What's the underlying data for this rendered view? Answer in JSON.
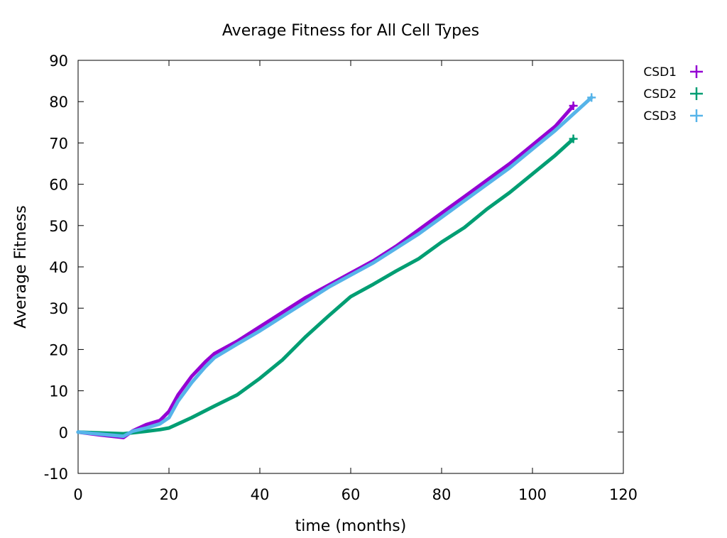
{
  "chart_data": {
    "type": "line",
    "title": "Average Fitness for All Cell Types",
    "xlabel": "time (months)",
    "ylabel": "Average Fitness",
    "xlim": [
      0,
      120
    ],
    "ylim": [
      -10,
      90
    ],
    "xticks": [
      0,
      20,
      40,
      60,
      80,
      100,
      120
    ],
    "yticks": [
      -10,
      0,
      10,
      20,
      30,
      40,
      50,
      60,
      70,
      80,
      90
    ],
    "grid": false,
    "legend_position": "outside-top-right",
    "marker": "+",
    "series": [
      {
        "name": "CSD1",
        "color": "#9400d3",
        "x": [
          0,
          5,
          10,
          12,
          15,
          18,
          20,
          22,
          25,
          28,
          30,
          35,
          40,
          45,
          50,
          55,
          60,
          65,
          70,
          75,
          80,
          85,
          90,
          95,
          100,
          105,
          109
        ],
        "y": [
          0,
          -0.7,
          -1.3,
          0.3,
          1.8,
          2.8,
          5,
          9,
          13.5,
          17,
          19,
          22,
          25.5,
          29,
          32.5,
          35.5,
          38.5,
          41.5,
          45,
          49,
          53,
          57,
          61,
          65,
          69.5,
          74,
          79
        ]
      },
      {
        "name": "CSD2",
        "color": "#009e73",
        "x": [
          0,
          5,
          10,
          15,
          18,
          20,
          25,
          30,
          35,
          40,
          45,
          50,
          55,
          60,
          65,
          70,
          75,
          80,
          85,
          90,
          95,
          100,
          105,
          109
        ],
        "y": [
          0,
          -0.2,
          -0.4,
          0.2,
          0.6,
          1,
          3.5,
          6.3,
          9,
          13,
          17.5,
          23,
          28,
          32.8,
          35.8,
          39,
          42,
          46,
          49.5,
          54,
          58,
          62.5,
          67,
          71
        ]
      },
      {
        "name": "CSD3",
        "color": "#56b4e9",
        "x": [
          0,
          5,
          10,
          12,
          15,
          18,
          20,
          22,
          25,
          28,
          30,
          35,
          40,
          45,
          50,
          55,
          60,
          65,
          70,
          75,
          80,
          85,
          90,
          95,
          100,
          105,
          113
        ],
        "y": [
          0,
          -0.5,
          -1,
          0.2,
          1,
          2,
          3.5,
          7.5,
          12,
          15.8,
          18,
          21.3,
          24.5,
          28,
          31.5,
          35,
          38,
          41,
          44.5,
          48,
          52,
          56,
          60,
          64,
          68.5,
          73,
          81
        ]
      }
    ]
  }
}
